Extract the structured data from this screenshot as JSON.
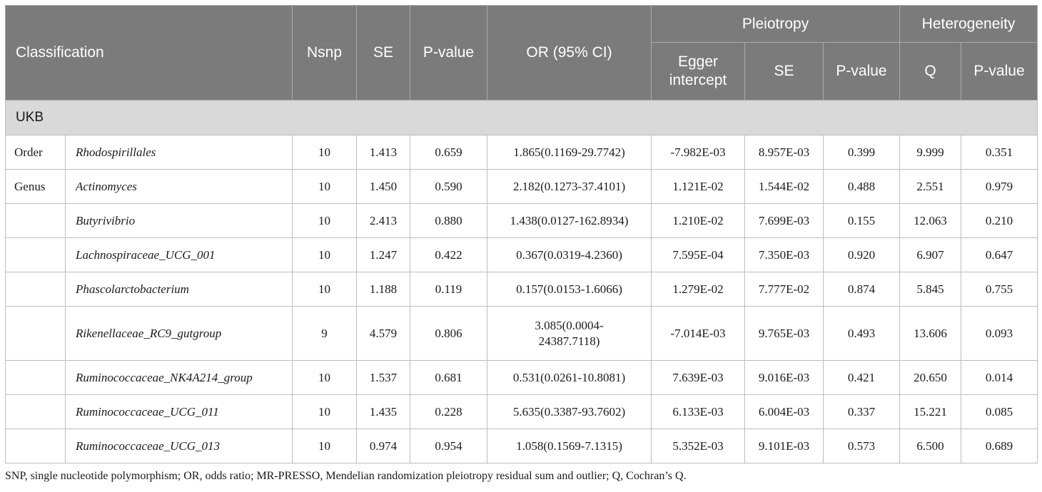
{
  "header": {
    "classification": "Classification",
    "nsnp": "Nsnp",
    "se": "SE",
    "pvalue": "P-value",
    "or_ci": "OR (95% CI)",
    "pleiotropy": "Pleiotropy",
    "heterogeneity": "Heterogeneity",
    "egger_intercept": "Egger intercept",
    "pl_se": "SE",
    "pl_pvalue": "P-value",
    "q": "Q",
    "het_pvalue": "P-value"
  },
  "section_label": "UKB",
  "rows": [
    {
      "classification": "Order",
      "name": "Rhodospirillales",
      "nsnp": "10",
      "se": "1.413",
      "p": "0.659",
      "or": "1.865(0.1169-29.7742)",
      "egger": "-7.982E-03",
      "pl_se": "8.957E-03",
      "pl_p": "0.399",
      "q": "9.999",
      "het_p": "0.351"
    },
    {
      "classification": "Genus",
      "name": "Actinomyces",
      "nsnp": "10",
      "se": "1.450",
      "p": "0.590",
      "or": "2.182(0.1273-37.4101)",
      "egger": "1.121E-02",
      "pl_se": "1.544E-02",
      "pl_p": "0.488",
      "q": "2.551",
      "het_p": "0.979"
    },
    {
      "classification": "",
      "name": "Butyrivibrio",
      "nsnp": "10",
      "se": "2.413",
      "p": "0.880",
      "or": "1.438(0.0127-162.8934)",
      "egger": "1.210E-02",
      "pl_se": "7.699E-03",
      "pl_p": "0.155",
      "q": "12.063",
      "het_p": "0.210"
    },
    {
      "classification": "",
      "name": "Lachnospiraceae_UCG_001",
      "nsnp": "10",
      "se": "1.247",
      "p": "0.422",
      "or": "0.367(0.0319-4.2360)",
      "egger": "7.595E-04",
      "pl_se": "7.350E-03",
      "pl_p": "0.920",
      "q": "6.907",
      "het_p": "0.647"
    },
    {
      "classification": "",
      "name": "Phascolarctobacterium",
      "nsnp": "10",
      "se": "1.188",
      "p": "0.119",
      "or": "0.157(0.0153-1.6066)",
      "egger": "1.279E-02",
      "pl_se": "7.777E-02",
      "pl_p": "0.874",
      "q": "5.845",
      "het_p": "0.755"
    },
    {
      "classification": "",
      "name": "Rikenellaceae_RC9_gutgroup",
      "nsnp": "9",
      "se": "4.579",
      "p": "0.806",
      "or": "3.085(0.0004-24387.7118)",
      "egger": "-7.014E-03",
      "pl_se": "9.765E-03",
      "pl_p": "0.493",
      "q": "13.606",
      "het_p": "0.093"
    },
    {
      "classification": "",
      "name": "Ruminococcaceae_NK4A214_group",
      "nsnp": "10",
      "se": "1.537",
      "p": "0.681",
      "or": "0.531(0.0261-10.8081)",
      "egger": "7.639E-03",
      "pl_se": "9.016E-03",
      "pl_p": "0.421",
      "q": "20.650",
      "het_p": "0.014"
    },
    {
      "classification": "",
      "name": "Ruminococcaceae_UCG_011",
      "nsnp": "10",
      "se": "1.435",
      "p": "0.228",
      "or": "5.635(0.3387-93.7602)",
      "egger": "6.133E-03",
      "pl_se": "6.004E-03",
      "pl_p": "0.337",
      "q": "15.221",
      "het_p": "0.085"
    },
    {
      "classification": "",
      "name": "Ruminococcaceae_UCG_013",
      "nsnp": "10",
      "se": "0.974",
      "p": "0.954",
      "or": "1.058(0.1569-7.1315)",
      "egger": "5.352E-03",
      "pl_se": "9.101E-03",
      "pl_p": "0.573",
      "q": "6.500",
      "het_p": "0.689"
    }
  ],
  "footnote": "SNP, single nucleotide polymorphism; OR, odds ratio; MR-PRESSO, Mendelian randomization pleiotropy residual sum and outlier; Q, Cochran’s Q.",
  "colors": {
    "header_bg": "#7b7b7b",
    "section_bg": "#d9d9d9",
    "border": "#bdbdbd"
  }
}
